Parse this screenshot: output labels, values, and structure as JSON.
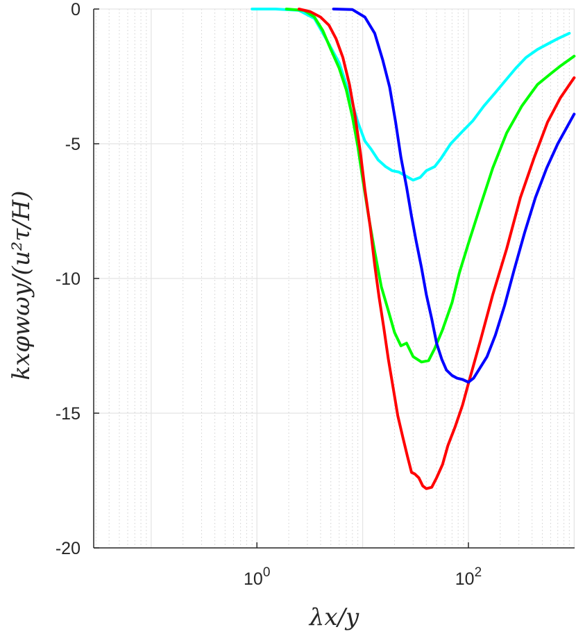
{
  "chart_data": {
    "type": "line",
    "xlabel": "λx/y",
    "ylabel": "kxφwωy/(u²τ/H)",
    "xscale": "log",
    "xlim": [
      0.0286,
      1010
    ],
    "ylim": [
      -20,
      0
    ],
    "grid": true,
    "minor_grid_x": true,
    "legend": "none",
    "x_ticks": [
      1,
      100
    ],
    "x_tick_labels": [
      {
        "base": "10",
        "exp": "0"
      },
      {
        "base": "10",
        "exp": "2"
      }
    ],
    "y_ticks": [
      0,
      -5,
      -10,
      -15,
      -20
    ],
    "y_tick_labels": [
      "0",
      "-5",
      "-10",
      "-15",
      "-20"
    ],
    "series": [
      {
        "color": "#00ffff",
        "x": [
          0.9,
          1.5,
          2.5,
          3.5,
          4.5,
          6.0,
          7.0,
          8.0,
          9.0,
          10.5,
          12.0,
          14.0,
          16.5,
          19.0,
          22.0,
          27.0,
          30.0,
          35.0,
          40.0,
          48.0,
          55.0,
          68.0,
          85.0,
          110.0,
          140.0,
          180.0,
          230.0,
          280.0,
          350.0,
          450.0,
          560.0,
          700.0,
          900.0
        ],
        "y": [
          0.0,
          0.0,
          -0.05,
          -0.35,
          -1.1,
          -2.0,
          -2.8,
          -3.5,
          -4.2,
          -4.9,
          -5.2,
          -5.6,
          -5.85,
          -6.0,
          -6.05,
          -6.25,
          -6.35,
          -6.25,
          -6.0,
          -5.85,
          -5.55,
          -5.0,
          -4.6,
          -4.15,
          -3.6,
          -3.1,
          -2.6,
          -2.2,
          -1.8,
          -1.5,
          -1.3,
          -1.1,
          -0.9
        ]
      },
      {
        "color": "#00ff00",
        "x": [
          1.9,
          2.8,
          3.5,
          4.2,
          5.0,
          6.0,
          7.0,
          8.0,
          9.0,
          10.0,
          11.5,
          13.0,
          15.0,
          17.5,
          20.0,
          23.0,
          26.0,
          30.0,
          36.0,
          42.0,
          48.0,
          57.0,
          70.0,
          82.0,
          100.0,
          130.0,
          170.0,
          230.0,
          320.0,
          450.0,
          600.0,
          750.0,
          1000.0
        ],
        "y": [
          0.0,
          -0.05,
          -0.3,
          -0.8,
          -1.5,
          -2.2,
          -3.0,
          -4.0,
          -5.1,
          -6.3,
          -7.8,
          -9.0,
          -10.3,
          -11.2,
          -12.0,
          -12.5,
          -12.4,
          -12.9,
          -13.1,
          -13.05,
          -12.6,
          -11.9,
          -10.9,
          -9.8,
          -8.7,
          -7.3,
          -5.9,
          -4.6,
          -3.6,
          -2.8,
          -2.4,
          -2.1,
          -1.75
        ]
      },
      {
        "color": "#ff0000",
        "x": [
          2.5,
          3.2,
          4.0,
          4.8,
          5.6,
          6.5,
          7.5,
          8.5,
          9.5,
          10.5,
          11.8,
          13.0,
          14.3,
          15.8,
          17.5,
          19.5,
          21.5,
          24.0,
          26.5,
          29.0,
          31.0,
          34.0,
          37.0,
          40.0,
          45.0,
          50.0,
          57.0,
          64.0,
          75.0,
          88.0,
          100.0,
          130.0,
          170.0,
          230.0,
          310.0,
          420.0,
          560.0,
          740.0,
          1000.0
        ],
        "y": [
          0.0,
          -0.1,
          -0.3,
          -0.6,
          -1.1,
          -1.8,
          -2.8,
          -4.0,
          -5.3,
          -6.7,
          -8.1,
          -9.5,
          -10.7,
          -11.8,
          -13.0,
          -14.1,
          -15.1,
          -15.9,
          -16.6,
          -17.2,
          -17.25,
          -17.4,
          -17.7,
          -17.8,
          -17.75,
          -17.4,
          -16.9,
          -16.2,
          -15.5,
          -14.7,
          -13.9,
          -12.3,
          -10.6,
          -8.9,
          -7.0,
          -5.5,
          -4.2,
          -3.3,
          -2.55
        ]
      },
      {
        "color": "#0000ff",
        "x": [
          5.3,
          8.0,
          10.5,
          13.0,
          15.5,
          18.0,
          20.5,
          23.0,
          26.0,
          29.0,
          32.0,
          36.0,
          40.0,
          45.0,
          50.0,
          56.0,
          62.0,
          70.0,
          78.0,
          88.0,
          100.0,
          112.0,
          125.0,
          150.0,
          180.0,
          220.0,
          270.0,
          340.0,
          430.0,
          550.0,
          700.0,
          1000.0
        ],
        "y": [
          0.0,
          -0.02,
          -0.3,
          -0.9,
          -1.9,
          -2.9,
          -4.2,
          -5.5,
          -6.6,
          -7.7,
          -8.6,
          -9.6,
          -10.6,
          -11.5,
          -12.4,
          -13.0,
          -13.4,
          -13.6,
          -13.7,
          -13.75,
          -13.85,
          -13.7,
          -13.4,
          -12.9,
          -12.1,
          -11.0,
          -9.7,
          -8.3,
          -7.0,
          -5.9,
          -5.0,
          -3.9
        ]
      }
    ]
  }
}
